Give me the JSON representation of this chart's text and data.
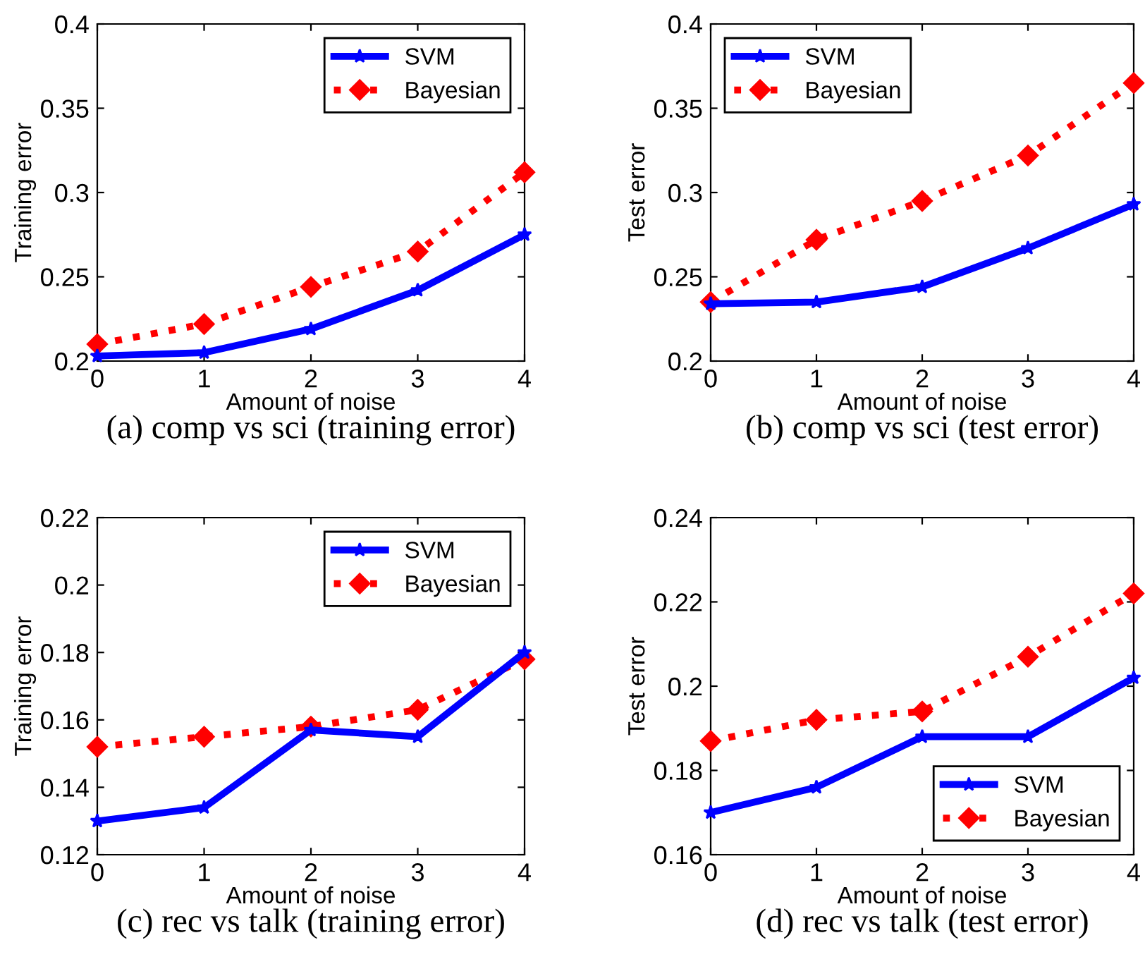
{
  "chart_data": [
    {
      "type": "line",
      "title": "(a) comp vs sci (training error)",
      "xlabel": "Amount of noise",
      "ylabel": "Training error",
      "x": [
        0,
        1,
        2,
        3,
        4
      ],
      "xlim": [
        0,
        4
      ],
      "xticks": [
        0,
        1,
        2,
        3,
        4
      ],
      "ylim": [
        0.2,
        0.4
      ],
      "yticks": [
        0.2,
        0.25,
        0.3,
        0.35,
        0.4
      ],
      "grid": false,
      "legend": "top right",
      "series": [
        {
          "name": "SVM",
          "color": "#0000ff",
          "marker": "star",
          "line_style": "solid",
          "values": [
            0.203,
            0.205,
            0.219,
            0.242,
            0.275
          ]
        },
        {
          "name": "Bayesian",
          "color": "#ff0000",
          "marker": "diamond",
          "line_style": "dotted",
          "values": [
            0.21,
            0.222,
            0.244,
            0.265,
            0.312
          ]
        }
      ]
    },
    {
      "type": "line",
      "title": "(b) comp vs sci (test error)",
      "xlabel": "Amount of noise",
      "ylabel": "Test error",
      "x": [
        0,
        1,
        2,
        3,
        4
      ],
      "xlim": [
        0,
        4
      ],
      "xticks": [
        0,
        1,
        2,
        3,
        4
      ],
      "ylim": [
        0.2,
        0.4
      ],
      "yticks": [
        0.2,
        0.25,
        0.3,
        0.35,
        0.4
      ],
      "grid": false,
      "legend": "top left",
      "series": [
        {
          "name": "SVM",
          "color": "#0000ff",
          "marker": "star",
          "line_style": "solid",
          "values": [
            0.234,
            0.235,
            0.244,
            0.267,
            0.293
          ]
        },
        {
          "name": "Bayesian",
          "color": "#ff0000",
          "marker": "diamond",
          "line_style": "dotted",
          "values": [
            0.235,
            0.272,
            0.295,
            0.322,
            0.365
          ]
        }
      ]
    },
    {
      "type": "line",
      "title": "(c) rec vs talk (training error)",
      "xlabel": "Amount of noise",
      "ylabel": "Training error",
      "x": [
        0,
        1,
        2,
        3,
        4
      ],
      "xlim": [
        0,
        4
      ],
      "xticks": [
        0,
        1,
        2,
        3,
        4
      ],
      "ylim": [
        0.12,
        0.22
      ],
      "yticks": [
        0.12,
        0.14,
        0.16,
        0.18,
        0.2,
        0.22
      ],
      "grid": false,
      "legend": "top right",
      "series": [
        {
          "name": "SVM",
          "color": "#0000ff",
          "marker": "star",
          "line_style": "solid",
          "values": [
            0.13,
            0.134,
            0.157,
            0.155,
            0.18
          ]
        },
        {
          "name": "Bayesian",
          "color": "#ff0000",
          "marker": "diamond",
          "line_style": "dotted",
          "values": [
            0.152,
            0.155,
            0.158,
            0.163,
            0.178
          ]
        }
      ]
    },
    {
      "type": "line",
      "title": "(d) rec vs talk (test error)",
      "xlabel": "Amount of noise",
      "ylabel": "Test error",
      "x": [
        0,
        1,
        2,
        3,
        4
      ],
      "xlim": [
        0,
        4
      ],
      "xticks": [
        0,
        1,
        2,
        3,
        4
      ],
      "ylim": [
        0.16,
        0.24
      ],
      "yticks": [
        0.16,
        0.18,
        0.2,
        0.22,
        0.24
      ],
      "grid": false,
      "legend": "bottom right",
      "series": [
        {
          "name": "SVM",
          "color": "#0000ff",
          "marker": "star",
          "line_style": "solid",
          "values": [
            0.17,
            0.176,
            0.188,
            0.188,
            0.202
          ]
        },
        {
          "name": "Bayesian",
          "color": "#ff0000",
          "marker": "diamond",
          "line_style": "dotted",
          "values": [
            0.187,
            0.192,
            0.194,
            0.207,
            0.222
          ]
        }
      ]
    }
  ]
}
